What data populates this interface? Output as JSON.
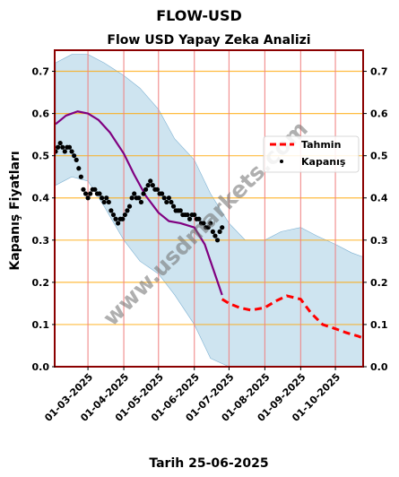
{
  "chart_data": {
    "type": "line",
    "title": "FLOW-USD",
    "subtitle": "Flow USD Yapay Zeka Analizi",
    "ylabel": "Kapanış Fiyatları",
    "xlabel": "Tarih 25-06-2025",
    "watermark": "www.usdmarkets.com",
    "ylim": [
      0,
      0.75
    ],
    "yticks": [
      0.0,
      0.1,
      0.2,
      0.3,
      0.4,
      0.5,
      0.6,
      0.7
    ],
    "ytick_labels": [
      "0.0",
      "0.1",
      "0.2",
      "0.3",
      "0.4",
      "0.5",
      "0.6",
      "0.7"
    ],
    "xlim": [
      "2025-02-01",
      "2025-10-25"
    ],
    "xticks": [
      "2025-03-01",
      "2025-04-01",
      "2025-05-01",
      "2025-06-01",
      "2025-07-01",
      "2025-08-01",
      "2025-09-01",
      "2025-10-01"
    ],
    "xtick_labels": [
      "01-03-2025",
      "01-04-2025",
      "01-05-2025",
      "01-06-2025",
      "01-07-2025",
      "01-08-2025",
      "01-09-2025",
      "01-10-2025"
    ],
    "legend": {
      "position": "center-right",
      "entries": [
        {
          "label": "Tahmin",
          "style": "dashed-line",
          "color": "#ff0000"
        },
        {
          "label": "Kapanış",
          "style": "dot",
          "color": "#000000"
        }
      ]
    },
    "colors": {
      "fit_line": "#800080",
      "forecast": "#ff0000",
      "closing": "#000000",
      "band": "#a6cee3",
      "vgrid": "#f08080",
      "hgrid": "#ffa500",
      "frame": "#8b0000"
    },
    "series": [
      {
        "name": "Kapanış",
        "type": "scatter",
        "x": [
          "2025-02-01",
          "2025-02-03",
          "2025-02-05",
          "2025-02-07",
          "2025-02-09",
          "2025-02-11",
          "2025-02-13",
          "2025-02-15",
          "2025-02-17",
          "2025-02-19",
          "2025-02-21",
          "2025-02-23",
          "2025-02-25",
          "2025-02-27",
          "2025-03-01",
          "2025-03-03",
          "2025-03-05",
          "2025-03-07",
          "2025-03-09",
          "2025-03-11",
          "2025-03-13",
          "2025-03-15",
          "2025-03-17",
          "2025-03-19",
          "2025-03-21",
          "2025-03-23",
          "2025-03-25",
          "2025-03-27",
          "2025-03-29",
          "2025-03-31",
          "2025-04-02",
          "2025-04-04",
          "2025-04-06",
          "2025-04-08",
          "2025-04-10",
          "2025-04-12",
          "2025-04-14",
          "2025-04-16",
          "2025-04-18",
          "2025-04-20",
          "2025-04-22",
          "2025-04-24",
          "2025-04-26",
          "2025-04-28",
          "2025-04-30",
          "2025-05-02",
          "2025-05-04",
          "2025-05-06",
          "2025-05-08",
          "2025-05-10",
          "2025-05-12",
          "2025-05-14",
          "2025-05-16",
          "2025-05-18",
          "2025-05-20",
          "2025-05-22",
          "2025-05-24",
          "2025-05-26",
          "2025-05-28",
          "2025-05-30",
          "2025-06-01",
          "2025-06-03",
          "2025-06-05",
          "2025-06-07",
          "2025-06-09",
          "2025-06-11",
          "2025-06-13",
          "2025-06-15",
          "2025-06-17",
          "2025-06-19",
          "2025-06-21",
          "2025-06-23",
          "2025-06-25"
        ],
        "y": [
          0.51,
          0.52,
          0.53,
          0.52,
          0.51,
          0.52,
          0.52,
          0.51,
          0.5,
          0.49,
          0.47,
          0.45,
          0.42,
          0.41,
          0.4,
          0.41,
          0.42,
          0.42,
          0.41,
          0.41,
          0.4,
          0.39,
          0.4,
          0.39,
          0.37,
          0.36,
          0.35,
          0.34,
          0.35,
          0.35,
          0.36,
          0.37,
          0.38,
          0.4,
          0.41,
          0.4,
          0.4,
          0.39,
          0.41,
          0.42,
          0.43,
          0.44,
          0.43,
          0.42,
          0.42,
          0.41,
          0.41,
          0.4,
          0.39,
          0.4,
          0.39,
          0.38,
          0.37,
          0.37,
          0.37,
          0.36,
          0.36,
          0.36,
          0.35,
          0.36,
          0.36,
          0.35,
          0.35,
          0.34,
          0.34,
          0.33,
          0.33,
          0.34,
          0.32,
          0.31,
          0.3,
          0.32,
          0.33
        ]
      },
      {
        "name": "fit",
        "type": "line",
        "x": [
          "2025-02-01",
          "2025-02-10",
          "2025-02-20",
          "2025-03-01",
          "2025-03-10",
          "2025-03-20",
          "2025-04-01",
          "2025-04-10",
          "2025-04-20",
          "2025-05-01",
          "2025-05-10",
          "2025-05-20",
          "2025-06-01",
          "2025-06-10",
          "2025-06-15",
          "2025-06-20",
          "2025-06-25"
        ],
        "y": [
          0.575,
          0.595,
          0.605,
          0.6,
          0.585,
          0.555,
          0.505,
          0.455,
          0.405,
          0.365,
          0.345,
          0.34,
          0.33,
          0.29,
          0.25,
          0.21,
          0.17
        ]
      },
      {
        "name": "Tahmin",
        "type": "line",
        "x": [
          "2025-06-25",
          "2025-07-01",
          "2025-07-10",
          "2025-07-20",
          "2025-08-01",
          "2025-08-10",
          "2025-08-20",
          "2025-09-01",
          "2025-09-10",
          "2025-09-20",
          "2025-10-01",
          "2025-10-10",
          "2025-10-20",
          "2025-10-25"
        ],
        "y": [
          0.16,
          0.15,
          0.14,
          0.134,
          0.14,
          0.155,
          0.168,
          0.16,
          0.127,
          0.1,
          0.09,
          0.081,
          0.073,
          0.068
        ]
      },
      {
        "name": "band",
        "type": "area",
        "x": [
          "2025-02-01",
          "2025-02-15",
          "2025-03-01",
          "2025-03-15",
          "2025-04-01",
          "2025-04-15",
          "2025-05-01",
          "2025-05-15",
          "2025-06-01",
          "2025-06-15",
          "2025-07-01",
          "2025-07-15",
          "2025-08-01",
          "2025-08-15",
          "2025-09-01",
          "2025-09-15",
          "2025-10-01",
          "2025-10-15",
          "2025-10-25"
        ],
        "upper": [
          0.72,
          0.74,
          0.74,
          0.72,
          0.69,
          0.66,
          0.61,
          0.54,
          0.49,
          0.41,
          0.34,
          0.3,
          0.3,
          0.32,
          0.33,
          0.31,
          0.29,
          0.27,
          0.26
        ],
        "lower": [
          0.43,
          0.45,
          0.44,
          0.38,
          0.3,
          0.25,
          0.22,
          0.17,
          0.1,
          0.02,
          0.0,
          0.0,
          0.0,
          0.0,
          0.0,
          0.0,
          0.0,
          0.0,
          0.0
        ]
      }
    ]
  }
}
